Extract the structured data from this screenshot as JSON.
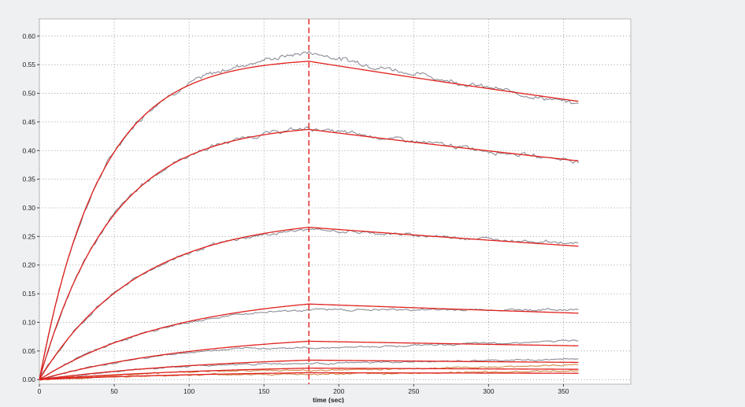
{
  "chart_data": {
    "type": "line",
    "title": "",
    "xlabel": "time (sec)",
    "ylabel": "",
    "xlim": [
      0,
      395
    ],
    "ylim": [
      -0.008,
      0.63
    ],
    "x_ticks": [
      0,
      50,
      100,
      150,
      200,
      250,
      300,
      350
    ],
    "x_tick_labels": [
      "0",
      "50",
      "100",
      "150",
      "200",
      "250",
      "300",
      "350"
    ],
    "y_ticks": [
      0,
      0.05,
      0.1,
      0.15,
      0.2,
      0.25,
      0.3,
      0.35,
      0.4,
      0.45,
      0.5,
      0.55,
      0.6
    ],
    "y_tick_labels": [
      "0.00",
      "0.05",
      "0.10",
      "0.15",
      "0.20",
      "0.25",
      "0.30",
      "0.35",
      "0.40",
      "0.45",
      "0.50",
      "0.55",
      "0.60"
    ],
    "grid": true,
    "legend": "none",
    "injection_end_marker_x": 180,
    "association_end": 180,
    "end_time": 360,
    "colors": {
      "fit": "#e0201c",
      "measured": "#8a8d96",
      "measured_low": "#d08a4a",
      "marker": "#e0201c",
      "grid": "#9a9a9a",
      "plot_background": "#ffffff",
      "page_background": "#eef0f1"
    },
    "series": [
      {
        "peak": 0.556,
        "end_fit": 0.486,
        "end_measured": 0.481,
        "overshoot": 0.016
      },
      {
        "peak": 0.437,
        "end_fit": 0.382,
        "end_measured": 0.382,
        "overshoot": 0.002
      },
      {
        "peak": 0.266,
        "end_fit": 0.233,
        "end_measured": 0.238,
        "overshoot": -0.004
      },
      {
        "peak": 0.132,
        "end_fit": 0.116,
        "end_measured": 0.122,
        "overshoot": -0.01
      },
      {
        "peak": 0.067,
        "end_fit": 0.059,
        "end_measured": 0.068,
        "overshoot": -0.012
      },
      {
        "peak": 0.034,
        "end_fit": 0.03,
        "end_measured": 0.036,
        "overshoot": -0.006
      },
      {
        "peak": 0.02,
        "end_fit": 0.018,
        "end_measured": 0.026,
        "overshoot": -0.004
      },
      {
        "peak": 0.012,
        "end_fit": 0.011,
        "end_measured": 0.016,
        "overshoot": -0.003
      }
    ]
  }
}
